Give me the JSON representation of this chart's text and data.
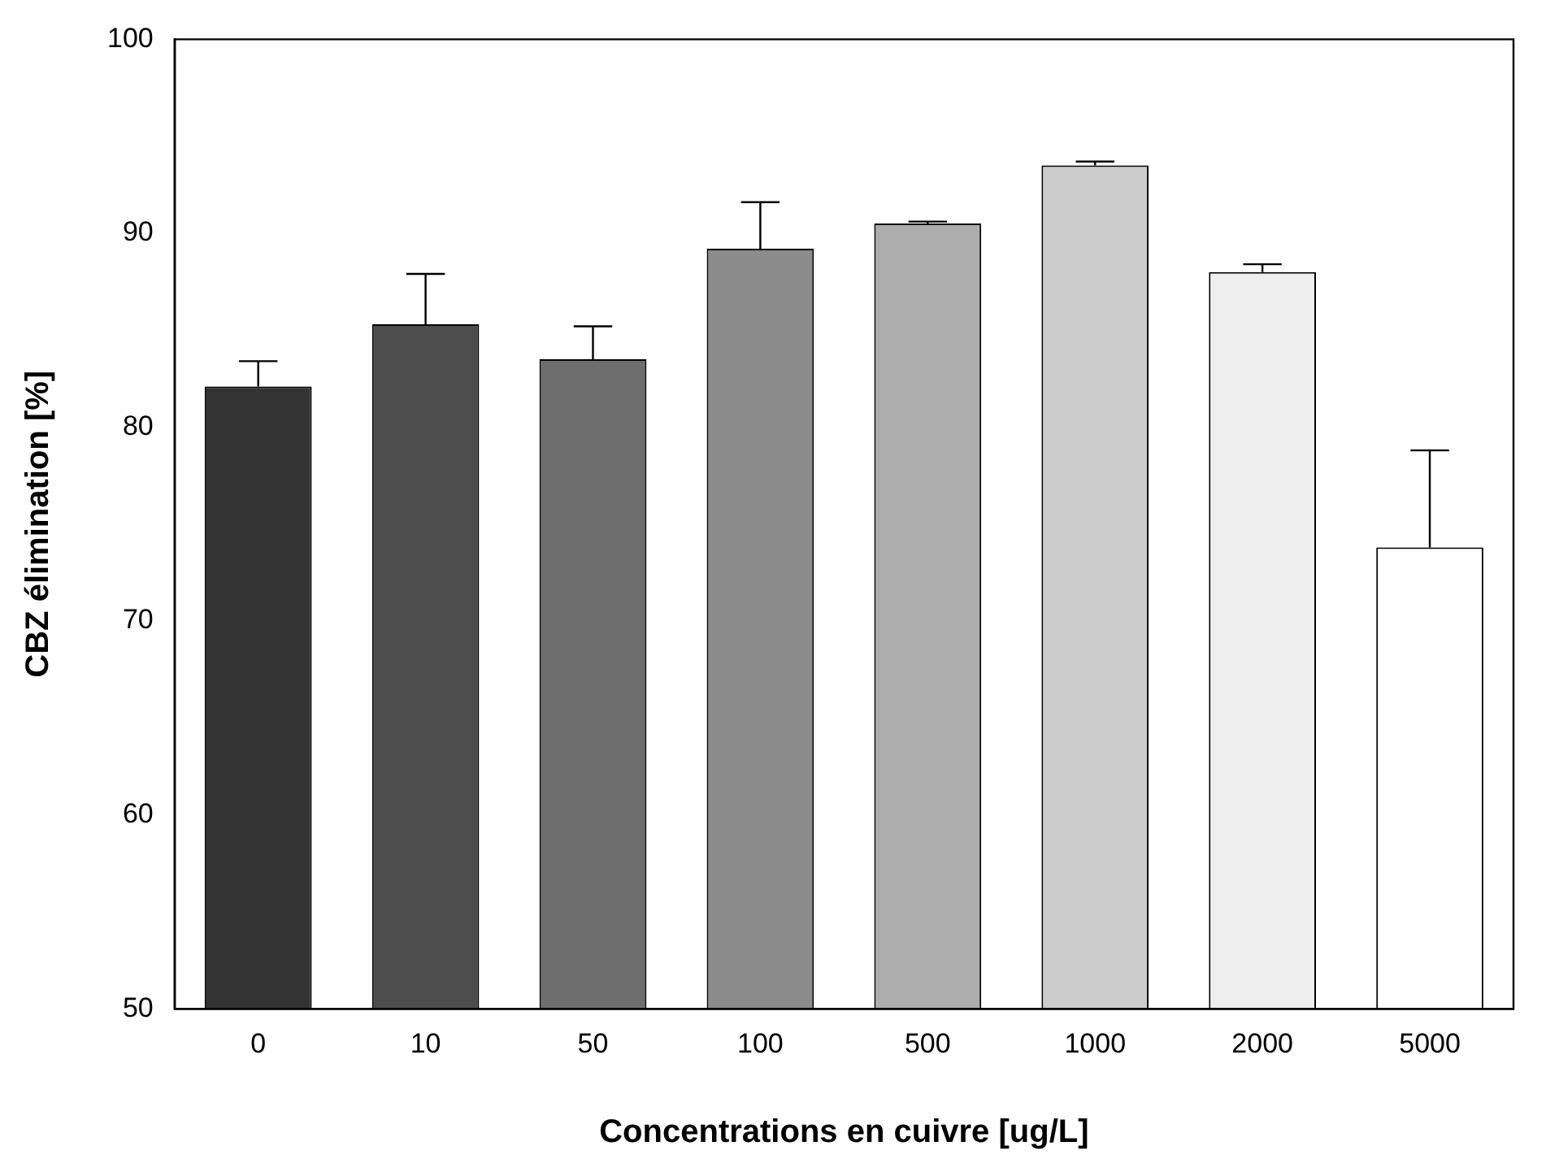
{
  "chart_data": {
    "type": "bar",
    "xlabel": "Concentrations en cuivre [ug/L]",
    "ylabel": "CBZ élimination [%]",
    "categories": [
      "0",
      "10",
      "50",
      "100",
      "500",
      "1000",
      "2000",
      "5000"
    ],
    "values": [
      82.1,
      85.3,
      83.5,
      89.2,
      90.5,
      93.5,
      88.0,
      73.8
    ],
    "colors": [
      "#333333",
      "#4d4d4d",
      "#6e6e6e",
      "#8c8c8c",
      "#adadad",
      "#cccccc",
      "#eeeeee",
      "#ffffff"
    ],
    "errors": [
      [
        82.1,
        83.4
      ],
      [
        85.3,
        87.9
      ],
      [
        83.5,
        85.2
      ],
      [
        89.2,
        91.6
      ],
      [
        90.5,
        90.6
      ],
      [
        93.5,
        93.7
      ],
      [
        88.0,
        88.4
      ],
      [
        73.8,
        78.8
      ]
    ],
    "ylim": [
      50,
      100
    ],
    "yticks": [
      50,
      60,
      70,
      80,
      90,
      100
    ],
    "grid": false,
    "legend": false
  }
}
